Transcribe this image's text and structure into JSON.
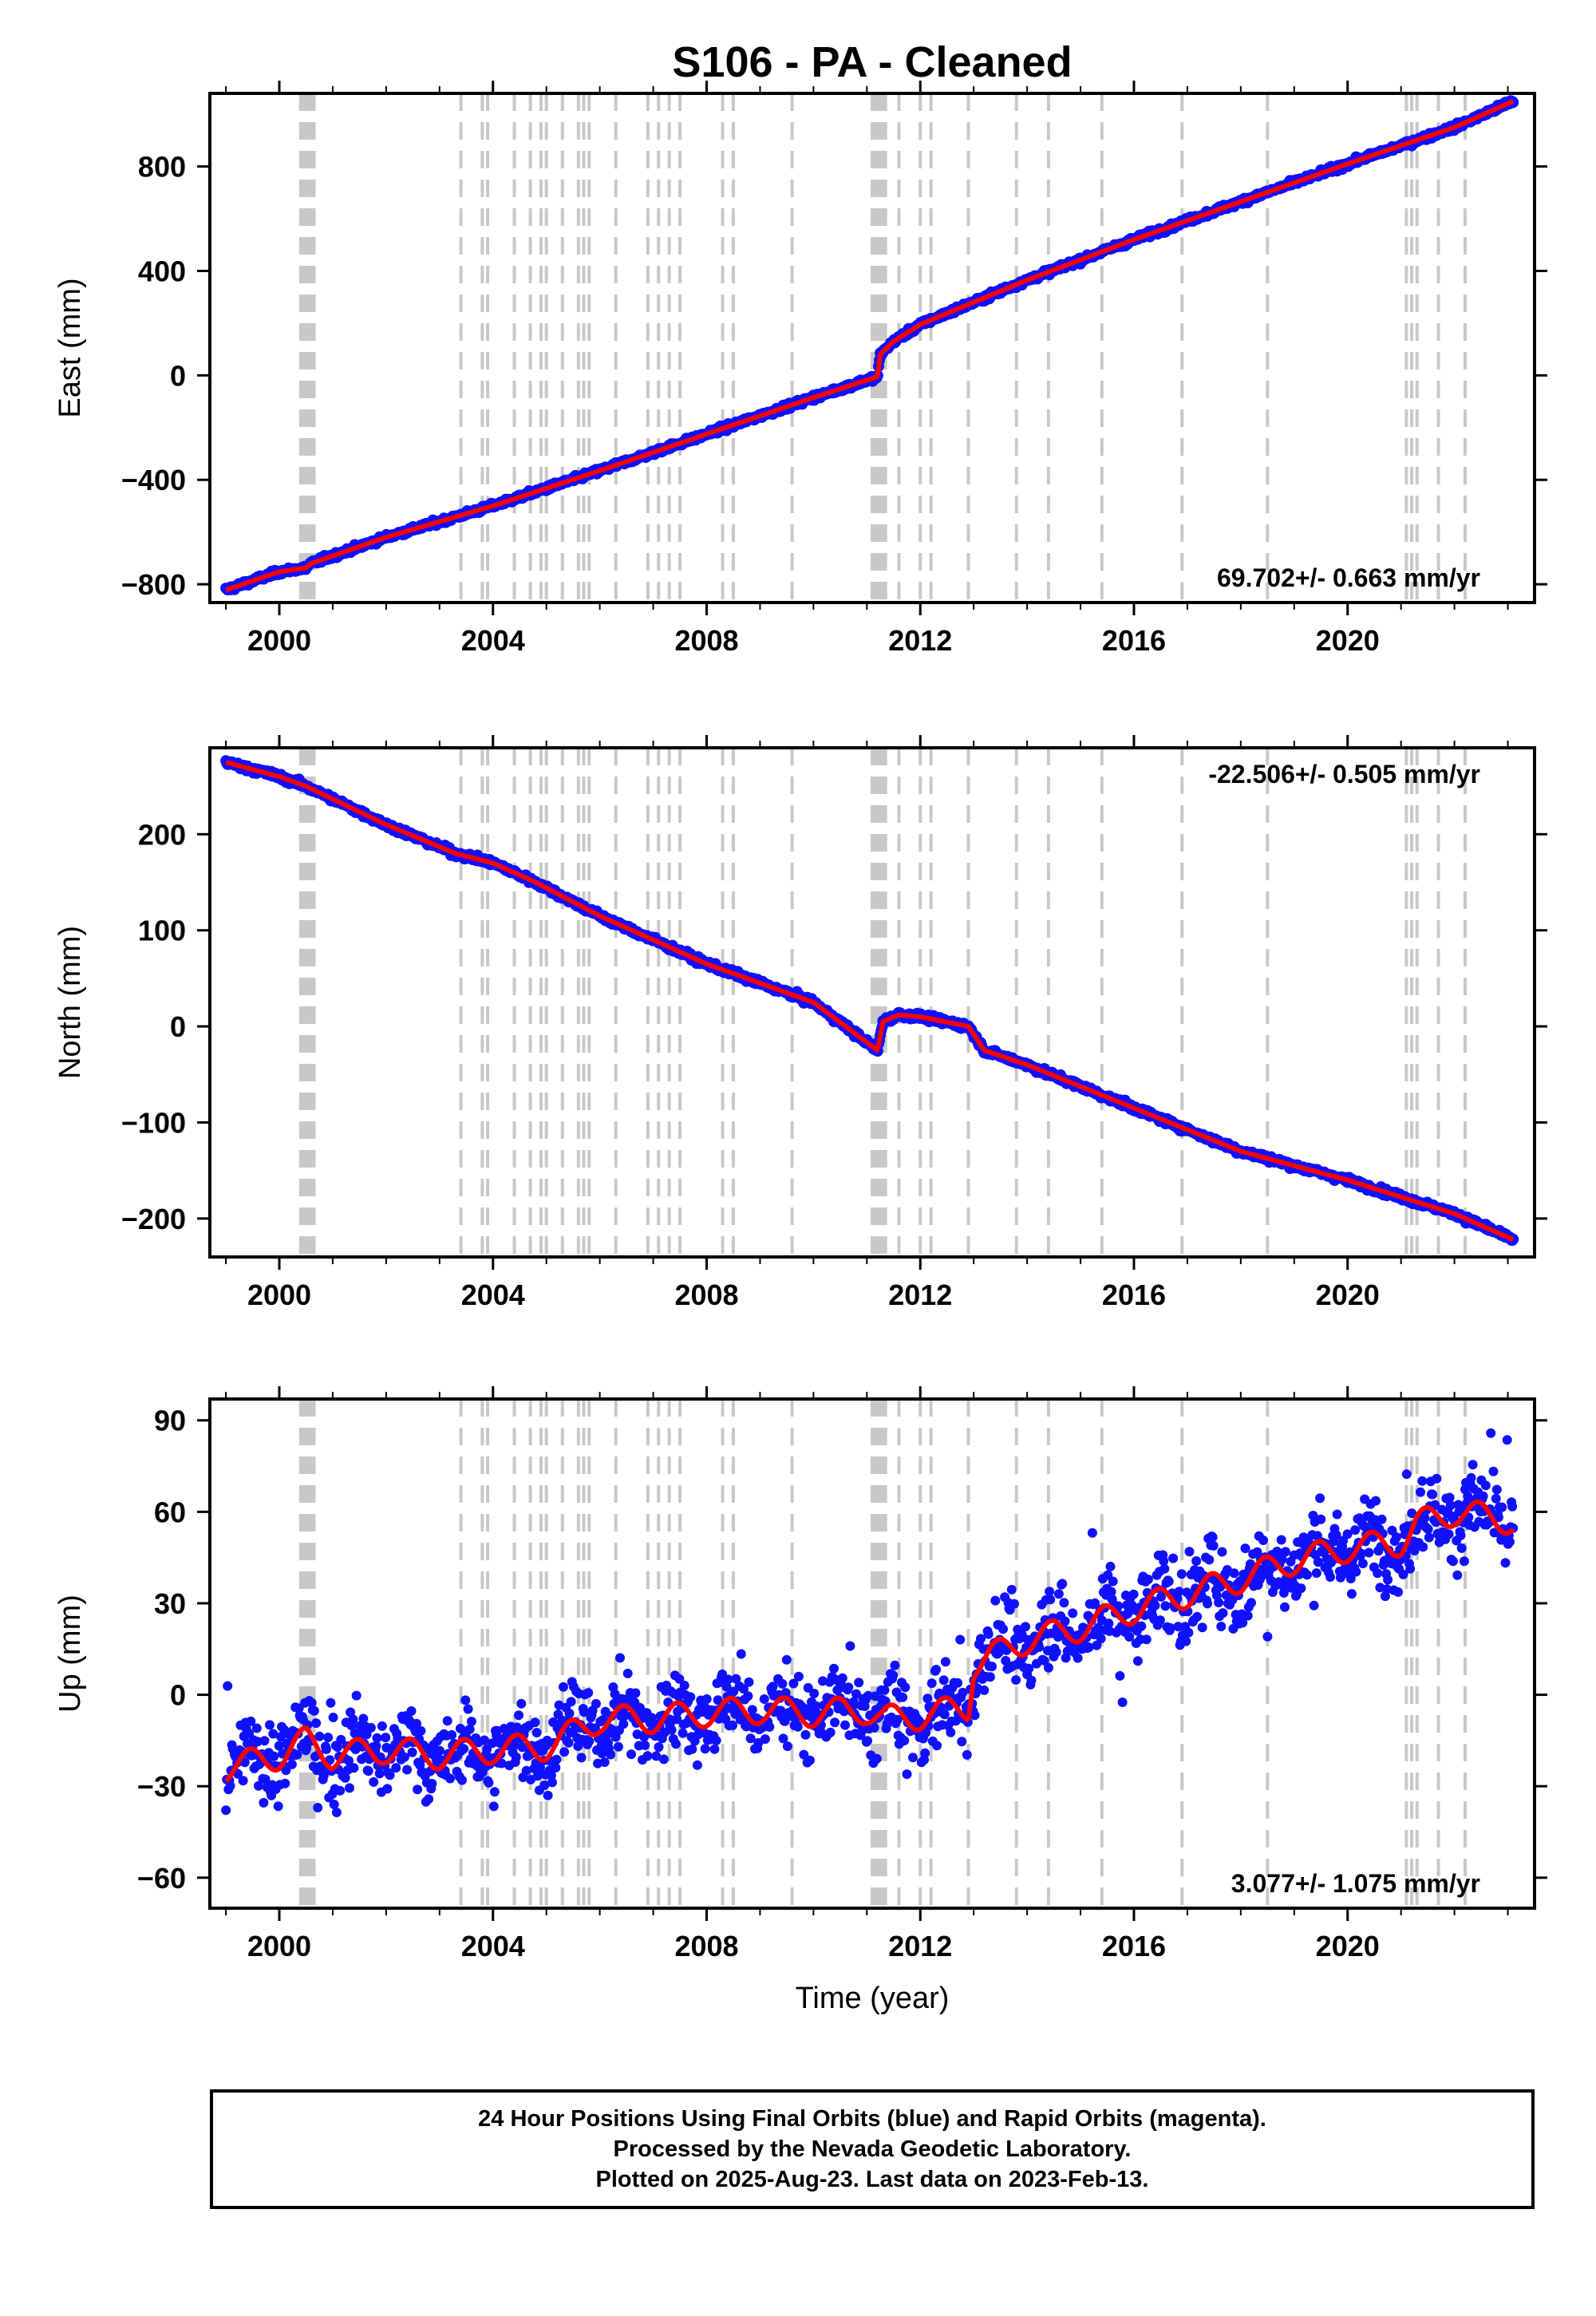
{
  "title": "S106  - PA - Cleaned",
  "xlabel": "Time (year)",
  "x_ticks": [
    "2000",
    "2004",
    "2008",
    "2012",
    "2016",
    "2020"
  ],
  "colors": {
    "data": "#1010ff",
    "model": "#ff0000",
    "equipment_change_lines": "#c8c8c8",
    "frame": "#000000"
  },
  "chart_data": [
    {
      "type": "scatter",
      "panel": "east",
      "ylabel": "East (mm)",
      "rate_label": "69.702+/- 0.663 mm/yr",
      "y_ticks": [
        "800",
        "400",
        "0",
        "−400",
        "−800"
      ],
      "xlim": [
        1998.7,
        2023.5
      ],
      "ylim": [
        -870,
        1080
      ],
      "series": [
        {
          "values": [
            [
              1999.0,
              -822
            ],
            [
              2000.0,
              -752
            ],
            [
              2000.5,
              -737
            ],
            [
              2000.6,
              -720
            ],
            [
              2002.0,
              -620
            ],
            [
              2003.5,
              -530
            ],
            [
              2004.0,
              -500
            ],
            [
              2006.0,
              -365
            ],
            [
              2008.0,
              -225
            ],
            [
              2010.0,
              -85
            ],
            [
              2011.2,
              -5
            ],
            [
              2011.25,
              80
            ],
            [
              2011.5,
              130
            ],
            [
              2012.0,
              195
            ],
            [
              2013.0,
              280
            ],
            [
              2014.0,
              365
            ],
            [
              2016.0,
              520
            ],
            [
              2018.0,
              665
            ],
            [
              2020.0,
              810
            ],
            [
              2022.0,
              950
            ],
            [
              2023.1,
              1050
            ]
          ]
        }
      ]
    },
    {
      "type": "scatter",
      "panel": "north",
      "ylabel": "North (mm)",
      "rate_label": "-22.506+/- 0.505 mm/yr",
      "y_ticks": [
        "200",
        "100",
        "0",
        "−100",
        "−200"
      ],
      "xlim": [
        1998.7,
        2023.5
      ],
      "ylim": [
        -240,
        290
      ],
      "series": [
        {
          "values": [
            [
              1999.0,
              275
            ],
            [
              2000.0,
              260
            ],
            [
              2000.5,
              250
            ],
            [
              2002.0,
              210
            ],
            [
              2003.3,
              180
            ],
            [
              2004.0,
              170
            ],
            [
              2004.8,
              150
            ],
            [
              2006.0,
              115
            ],
            [
              2008.0,
              65
            ],
            [
              2010.0,
              25
            ],
            [
              2011.2,
              -25
            ],
            [
              2011.3,
              5
            ],
            [
              2011.6,
              12
            ],
            [
              2012.0,
              10
            ],
            [
              2012.9,
              0
            ],
            [
              2013.2,
              -25
            ],
            [
              2014.0,
              -40
            ],
            [
              2016.0,
              -85
            ],
            [
              2018.0,
              -130
            ],
            [
              2020.0,
              -160
            ],
            [
              2022.0,
              -195
            ],
            [
              2023.1,
              -222
            ]
          ]
        }
      ]
    },
    {
      "type": "scatter",
      "panel": "up",
      "ylabel": "Up (mm)",
      "rate_label": "3.077+/- 1.075 mm/yr",
      "y_ticks": [
        "90",
        "60",
        "30",
        "0",
        "−30",
        "−60"
      ],
      "xlim": [
        1998.7,
        2023.5
      ],
      "ylim": [
        -70,
        97
      ],
      "series": [
        {
          "values": [
            [
              1999.0,
              -24
            ],
            [
              2000.0,
              -20
            ],
            [
              2000.5,
              -15
            ],
            [
              2001.0,
              -20
            ],
            [
              2002.0,
              -18
            ],
            [
              2003.0,
              -20
            ],
            [
              2004.0,
              -18
            ],
            [
              2005.0,
              -17
            ],
            [
              2006.0,
              -8
            ],
            [
              2007.0,
              -8
            ],
            [
              2008.0,
              -6
            ],
            [
              2009.0,
              -5
            ],
            [
              2010.0,
              -6
            ],
            [
              2011.0,
              -5
            ],
            [
              2011.3,
              -8
            ],
            [
              2012.0,
              -7
            ],
            [
              2012.9,
              -4
            ],
            [
              2013.0,
              10
            ],
            [
              2014.0,
              18
            ],
            [
              2015.0,
              22
            ],
            [
              2016.0,
              28
            ],
            [
              2017.0,
              33
            ],
            [
              2018.0,
              38
            ],
            [
              2019.0,
              44
            ],
            [
              2020.0,
              48
            ],
            [
              2021.0,
              50
            ],
            [
              2021.3,
              56
            ],
            [
              2022.0,
              60
            ],
            [
              2023.1,
              57
            ]
          ]
        }
      ]
    }
  ],
  "equipment_change_years": [
    2000.4,
    2000.45,
    2000.5,
    2000.55,
    2000.6,
    2000.65,
    2003.4,
    2003.8,
    2003.9,
    2004.4,
    2004.7,
    2004.9,
    2005.0,
    2005.3,
    2005.6,
    2005.7,
    2005.8,
    2006.3,
    2006.9,
    2007.1,
    2007.3,
    2007.5,
    2008.3,
    2008.5,
    2009.6,
    2011.1,
    2011.15,
    2011.2,
    2011.25,
    2011.3,
    2011.35,
    2011.6,
    2012.0,
    2012.2,
    2012.9,
    2013.8,
    2014.4,
    2015.4,
    2016.9,
    2018.5,
    2021.1,
    2021.2,
    2021.3,
    2021.7,
    2022.2
  ],
  "footer": {
    "line1": "24 Hour Positions Using Final Orbits (blue) and Rapid Orbits (magenta).",
    "line2": "Processed by the Nevada Geodetic Laboratory.",
    "line3": "Plotted on 2025-Aug-23. Last data on 2023-Feb-13."
  }
}
